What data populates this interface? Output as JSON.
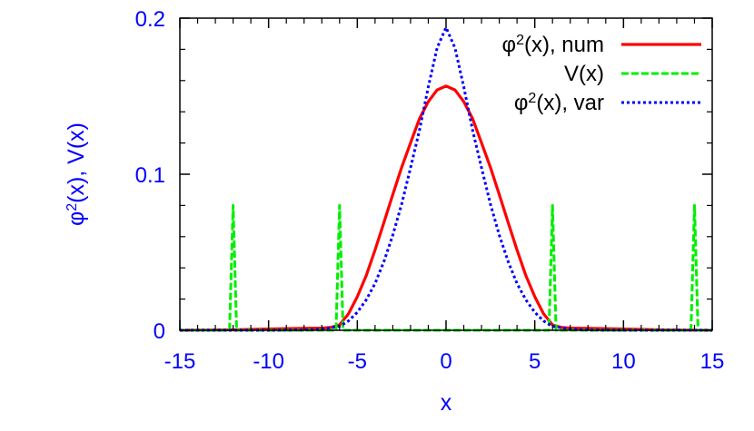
{
  "chart_data": {
    "type": "line",
    "xlabel": "x",
    "ylabel": "φ²(x), V(x)",
    "xlim": [
      -15,
      15
    ],
    "ylim": [
      0,
      0.2
    ],
    "x_ticks": [
      -15,
      -10,
      -5,
      0,
      5,
      10,
      15
    ],
    "x_tick_labels": [
      "-15",
      "-10",
      "-5",
      "0",
      "5",
      "10",
      "15"
    ],
    "y_ticks": [
      0,
      0.1,
      0.2
    ],
    "y_tick_labels": [
      "0",
      "0.1",
      "0.2"
    ],
    "grid": false,
    "legend_position": "top-right",
    "series": [
      {
        "name": "φ²(x), num",
        "color": "#ff0000",
        "style": "solid",
        "x": [
          -15,
          -12,
          -10,
          -8,
          -7,
          -6.5,
          -6,
          -5.5,
          -5,
          -4.5,
          -4,
          -3.5,
          -3,
          -2.5,
          -2,
          -1.5,
          -1,
          -0.5,
          0,
          0.5,
          1,
          1.5,
          2,
          2.5,
          3,
          3.5,
          4,
          4.5,
          5,
          5.5,
          6,
          6.5,
          7,
          8,
          10,
          12,
          15
        ],
        "y": [
          0,
          0.0003,
          0.0008,
          0.0012,
          0.0014,
          0.0018,
          0.0035,
          0.0105,
          0.0215,
          0.035,
          0.0515,
          0.069,
          0.087,
          0.1045,
          0.12,
          0.1355,
          0.1465,
          0.154,
          0.1565,
          0.154,
          0.1465,
          0.1355,
          0.12,
          0.1045,
          0.087,
          0.069,
          0.0515,
          0.035,
          0.0215,
          0.0105,
          0.0035,
          0.0018,
          0.0014,
          0.0012,
          0.0008,
          0.0003,
          0
        ]
      },
      {
        "name": "V(x)",
        "color": "#00ee00",
        "style": "dashed",
        "x": [
          -15,
          -12.2,
          -12.0,
          -11.8,
          -6.2,
          -6.0,
          -5.8,
          5.8,
          6.0,
          6.2,
          13.8,
          14.0,
          14.2,
          15
        ],
        "y": [
          0,
          0,
          0.08,
          0,
          0,
          0.08,
          0,
          0,
          0.08,
          0,
          0,
          0.08,
          0,
          0
        ]
      },
      {
        "name": "φ²(x), var",
        "color": "#0000ff",
        "style": "dotted",
        "x": [
          -15,
          -10,
          -8,
          -7,
          -6,
          -5.5,
          -5,
          -4.5,
          -4,
          -3.5,
          -3,
          -2.5,
          -2,
          -1.5,
          -1,
          -0.5,
          0,
          0.5,
          1,
          1.5,
          2,
          2.5,
          3,
          3.5,
          4,
          4.5,
          5,
          5.5,
          6,
          7,
          8,
          10,
          15
        ],
        "y": [
          0,
          0,
          0.0002,
          0.0008,
          0.0025,
          0.006,
          0.0115,
          0.0195,
          0.03,
          0.044,
          0.061,
          0.081,
          0.104,
          0.128,
          0.156,
          0.181,
          0.194,
          0.181,
          0.156,
          0.128,
          0.104,
          0.081,
          0.061,
          0.044,
          0.03,
          0.0195,
          0.0115,
          0.006,
          0.0025,
          0.0008,
          0.0002,
          0,
          0
        ]
      }
    ]
  }
}
